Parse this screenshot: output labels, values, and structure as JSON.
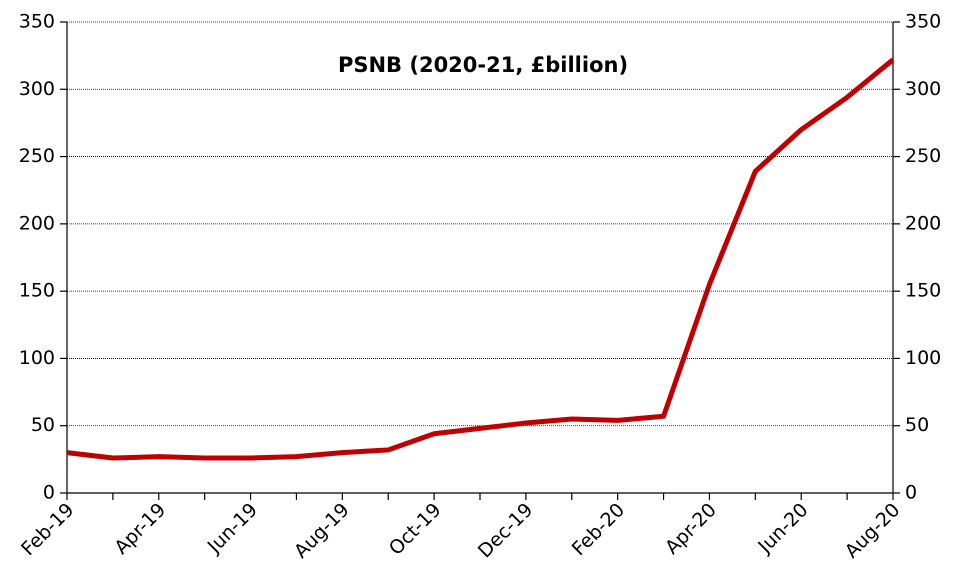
{
  "chart_data": {
    "type": "line",
    "title": "PSNB (2020-21, £billion)",
    "categories": [
      "Feb-19",
      null,
      "Apr-19",
      null,
      "Jun-19",
      null,
      "Aug-19",
      null,
      "Oct-19",
      null,
      "Dec-19",
      null,
      "Feb-20",
      null,
      "Apr-20",
      null,
      "Jun-20",
      null,
      "Aug-20"
    ],
    "values": [
      30,
      26,
      27,
      26,
      26,
      27,
      30,
      32,
      44,
      48,
      52,
      55,
      54,
      57,
      155,
      239,
      270,
      294,
      322
    ],
    "color": "#c00000",
    "ylim": [
      0,
      350
    ],
    "yticks": [
      0,
      50,
      100,
      150,
      200,
      250,
      300,
      350
    ],
    "y2lim": [
      0,
      350
    ],
    "y2ticks": [
      0,
      50,
      100,
      150,
      200,
      250,
      300,
      350
    ],
    "grid": true
  }
}
